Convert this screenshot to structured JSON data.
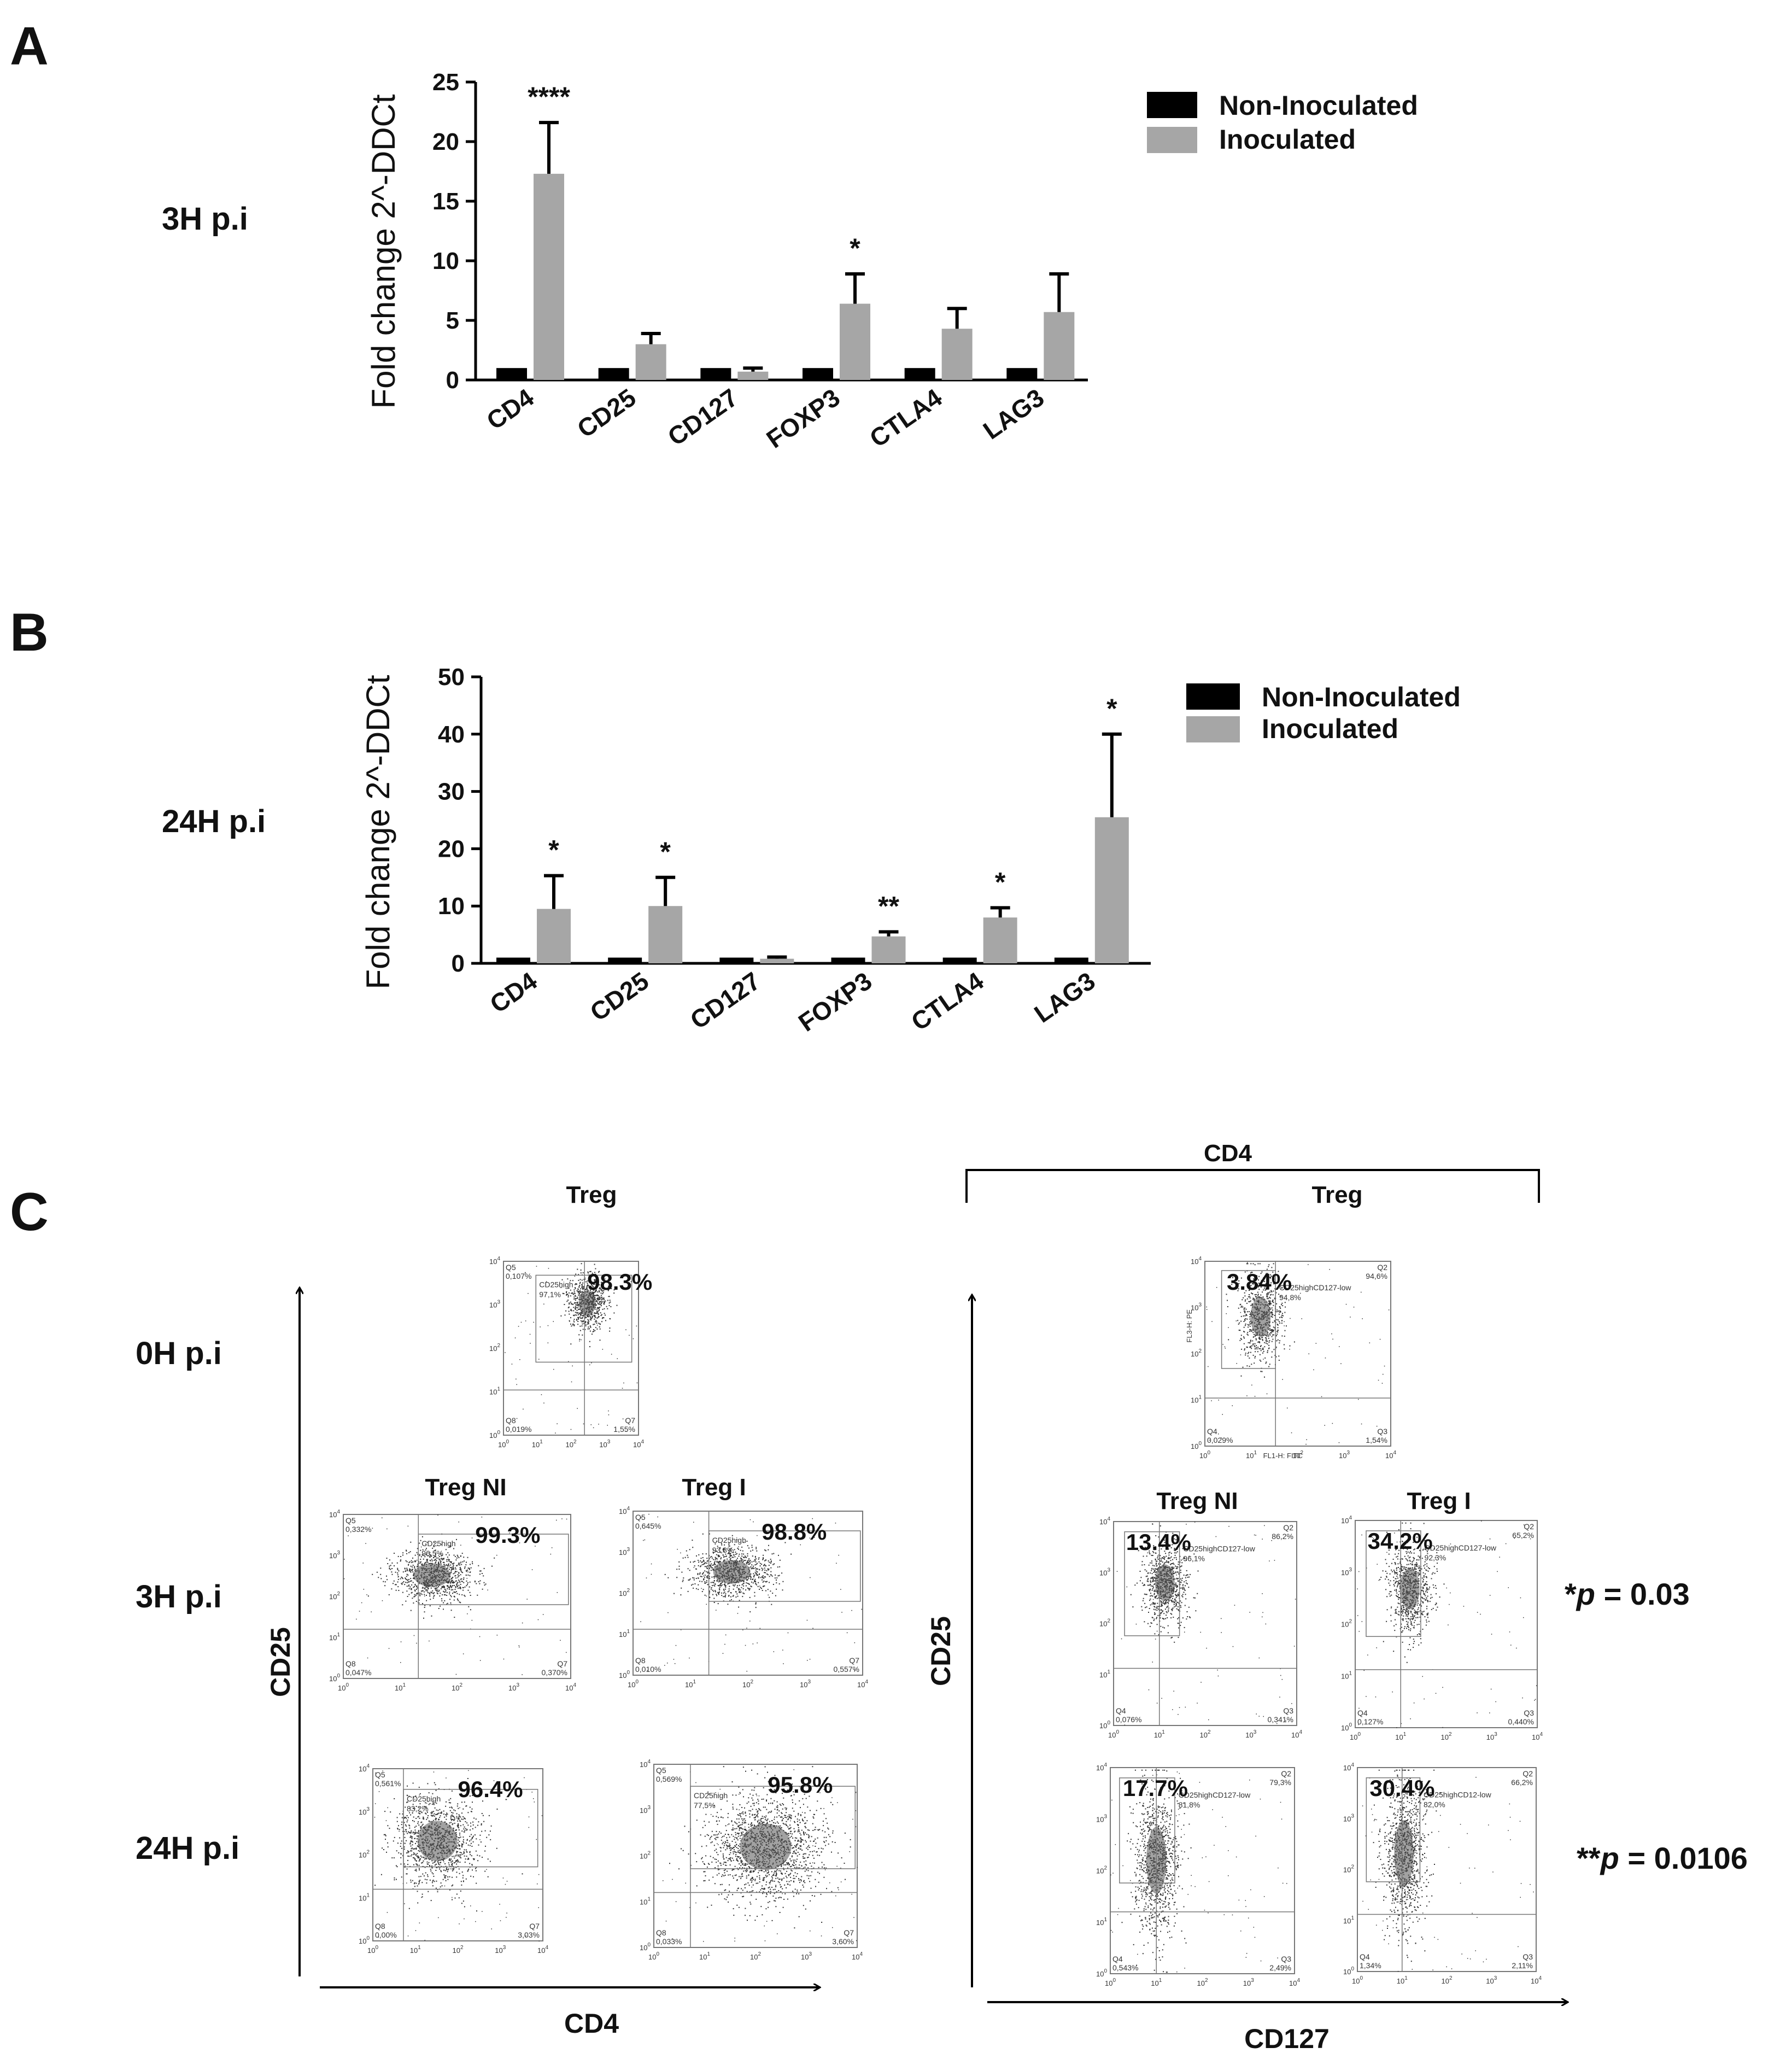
{
  "panels": {
    "A": {
      "letter": "A",
      "row_label": "3H p.i"
    },
    "B": {
      "letter": "B",
      "row_label": "24H p.i"
    },
    "C": {
      "letter": "C"
    }
  },
  "legend": {
    "non_inoculated": "Non-Inoculated",
    "inoculated": "Inoculated"
  },
  "colors": {
    "non_inoculated": "#000000",
    "inoculated": "#a6a6a6",
    "axis": "#000000"
  },
  "chart_data": [
    {
      "id": "A",
      "type": "bar",
      "title": "",
      "ylabel": "Fold change 2^-DDCt",
      "xlabel": "",
      "categories": [
        "CD4",
        "CD25",
        "CD127",
        "FOXP3",
        "CTLA4",
        "LAG3"
      ],
      "ylim": [
        0,
        25
      ],
      "yticks": [
        0,
        5,
        10,
        15,
        20,
        25
      ],
      "series": [
        {
          "name": "Non-Inoculated",
          "values": [
            1,
            1,
            1,
            1,
            1,
            1
          ],
          "errors": [
            0,
            0,
            0,
            0,
            0,
            0
          ]
        },
        {
          "name": "Inoculated",
          "values": [
            17.3,
            3.0,
            0.7,
            6.4,
            4.3,
            5.7
          ],
          "errors": [
            4.3,
            0.9,
            0.3,
            2.5,
            1.7,
            3.2
          ]
        }
      ],
      "significance": [
        "****",
        "",
        "",
        "*",
        "",
        ""
      ]
    },
    {
      "id": "B",
      "type": "bar",
      "title": "",
      "ylabel": "Fold change 2^-DDCt",
      "xlabel": "",
      "categories": [
        "CD4",
        "CD25",
        "CD127",
        "FOXP3",
        "CTLA4",
        "LAG3"
      ],
      "ylim": [
        0,
        50
      ],
      "yticks": [
        0,
        10,
        20,
        30,
        40,
        50
      ],
      "series": [
        {
          "name": "Non-Inoculated",
          "values": [
            1,
            1,
            1,
            1,
            1,
            1
          ],
          "errors": [
            0,
            0,
            0,
            0,
            0,
            0
          ]
        },
        {
          "name": "Inoculated",
          "values": [
            9.5,
            10.0,
            0.8,
            4.7,
            8.0,
            25.5
          ],
          "errors": [
            5.8,
            5.0,
            0.3,
            0.8,
            1.7,
            14.5
          ]
        }
      ],
      "significance": [
        "*",
        "*",
        "",
        "**",
        "*",
        "*"
      ]
    }
  ],
  "facs": {
    "left_header": "Treg",
    "right_bracket": "CD4",
    "right_header": "Treg",
    "row_labels": [
      "0H p.i",
      "3H p.i",
      "24H p.i"
    ],
    "col_labels": {
      "treg_ni": "Treg NI",
      "treg_i": "Treg I"
    },
    "left_x_axis": "CD4",
    "left_y_axis": "CD25",
    "right_x_axis": "CD127",
    "right_y_axis": "CD25",
    "p_values": [
      {
        "stars": "*",
        "label": "p",
        "value": " = 0.03"
      },
      {
        "stars": "**",
        "label": "p",
        "value": " = 0.0106"
      }
    ],
    "plots": [
      {
        "id": "L0",
        "pct": "98.3%",
        "gate": "CD25high",
        "gate_pct": "97,1%",
        "q_tl": "Q5",
        "q_tl_v": "0,107%",
        "q_bl": "Q8",
        "q_bl_v": "0,019%",
        "q_br": "Q7",
        "q_br_v": "1,55%",
        "q_tr": "",
        "q_tr_v": ""
      },
      {
        "id": "L1a",
        "pct": "99.3%",
        "gate": "CD25high",
        "gate_pct": "96,5%",
        "q_tl": "Q5",
        "q_tl_v": "0,332%",
        "q_bl": "Q8",
        "q_bl_v": "0,047%",
        "q_br": "Q7",
        "q_br_v": "0,370%",
        "q_tr": "",
        "q_tr_v": ""
      },
      {
        "id": "L1b",
        "pct": "98.8%",
        "gate": "CD25high",
        "gate_pct": "93,8%",
        "q_tl": "Q5",
        "q_tl_v": "0,645%",
        "q_bl": "Q8",
        "q_bl_v": "0,010%",
        "q_br": "Q7",
        "q_br_v": "0,557%",
        "q_tr": "",
        "q_tr_v": ""
      },
      {
        "id": "L2a",
        "pct": "96.4%",
        "gate": "CD25high",
        "gate_pct": "83,2%",
        "q_tl": "Q5",
        "q_tl_v": "0,561%",
        "q_bl": "Q8",
        "q_bl_v": "0,00%",
        "q_br": "Q7",
        "q_br_v": "3,03%",
        "q_tr": "",
        "q_tr_v": ""
      },
      {
        "id": "L2b",
        "pct": "95.8%",
        "gate": "CD25high",
        "gate_pct": "77,5%",
        "q_tl": "Q5",
        "q_tl_v": "0,569%",
        "q_bl": "Q8",
        "q_bl_v": "0,033%",
        "q_br": "Q7",
        "q_br_v": "3,60%",
        "q_tr": "",
        "q_tr_v": ""
      },
      {
        "id": "R0",
        "pct": "3.84%",
        "gate": "CD25highCD127-low",
        "gate_pct": "94,8%",
        "q_tl": "",
        "q_tl_v": "",
        "q_bl": "Q4",
        "q_bl_v": "0,029%",
        "q_br": "Q3",
        "q_br_v": "1,54%",
        "q_tr": "Q2",
        "q_tr_v": "94,6%"
      },
      {
        "id": "R1a",
        "pct": "13.4%",
        "gate": "CD25highCD127-low",
        "gate_pct": "96,1%",
        "q_tl": "",
        "q_tl_v": "",
        "q_bl": "Q4",
        "q_bl_v": "0,076%",
        "q_br": "Q3",
        "q_br_v": "0,341%",
        "q_tr": "Q2",
        "q_tr_v": "86,2%"
      },
      {
        "id": "R1b",
        "pct": "34.2%",
        "gate": "CD25highCD127-low",
        "gate_pct": "92,3%",
        "q_tl": "",
        "q_tl_v": "",
        "q_bl": "Q4",
        "q_bl_v": "0,127%",
        "q_br": "Q3",
        "q_br_v": "0,440%",
        "q_tr": "Q2",
        "q_tr_v": "65,2%"
      },
      {
        "id": "R2a",
        "pct": "17.7%",
        "gate": "CD25highCD127-low",
        "gate_pct": "81,8%",
        "q_tl": "",
        "q_tl_v": "",
        "q_bl": "Q4",
        "q_bl_v": "0,543%",
        "q_br": "Q3",
        "q_br_v": "2,49%",
        "q_tr": "Q2",
        "q_tr_v": "79,3%"
      },
      {
        "id": "R2b",
        "pct": "30.4%",
        "gate": "CD25highCD12-low",
        "gate_pct": "82,0%",
        "q_tl": "",
        "q_tl_v": "",
        "q_bl": "Q4",
        "q_bl_v": "1,34%",
        "q_br": "Q3",
        "q_br_v": "2,11%",
        "q_tr": "Q2",
        "q_tr_v": "66,2%"
      }
    ],
    "decade_ticks": [
      "10",
      "10",
      "10",
      "10",
      "10"
    ],
    "decade_exps": [
      "0",
      "1",
      "2",
      "3",
      "4"
    ],
    "r0_axis_x": "FL1-H: FITC",
    "r0_axis_y": "FL3-H: PE"
  }
}
